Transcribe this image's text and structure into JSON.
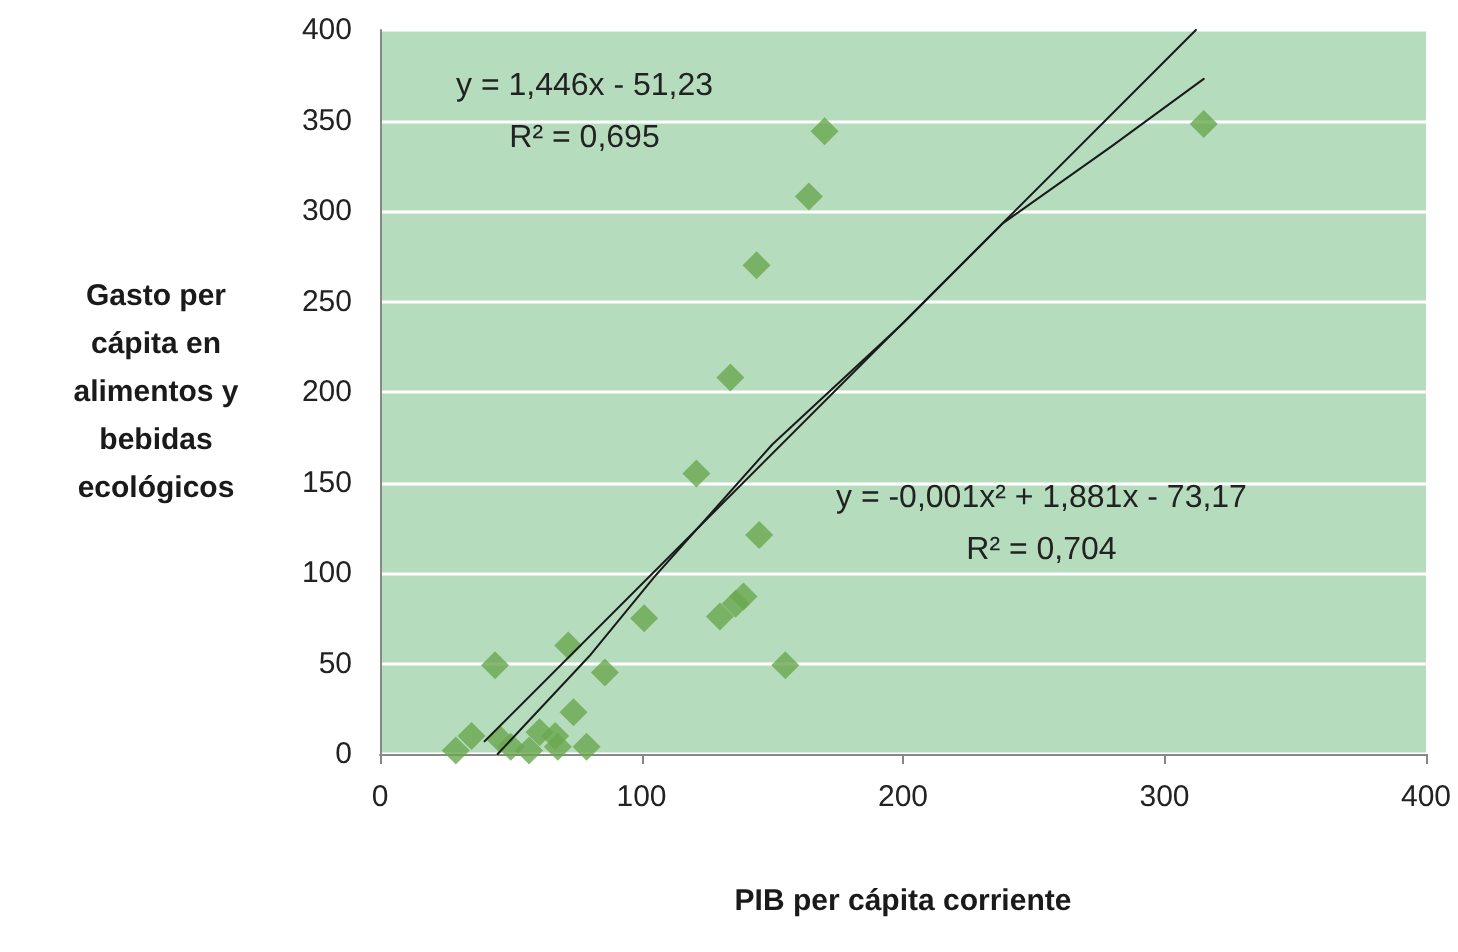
{
  "chart_data": {
    "type": "scatter",
    "xlabel": "PIB per cápita corriente",
    "ylabel": "Gasto per\ncápita en\nalimentos y\nbebidas\necológicos",
    "series": [
      {
        "color": "#6aa84f",
        "marker": "diamond",
        "x": [
          29,
          35,
          44,
          46,
          50,
          57,
          61,
          67,
          68,
          72,
          74,
          79,
          86,
          101,
          121,
          130,
          136,
          139,
          145,
          155,
          134,
          144,
          164,
          170,
          315
        ],
        "values": [
          2,
          10,
          49,
          8,
          4,
          2,
          12,
          10,
          4,
          60,
          23,
          4,
          45,
          75,
          155,
          76,
          83,
          87,
          121,
          49,
          208,
          270,
          308,
          344,
          348
        ]
      },
      {
        "type": "line",
        "color": "#1a1a1a",
        "marker": "none",
        "x": [
          40,
          312
        ],
        "values": [
          7,
          400
        ]
      },
      {
        "type": "line",
        "color": "#1a1a1a",
        "marker": "none",
        "x": [
          45,
          80,
          105,
          150,
          200,
          238,
          280,
          315
        ],
        "values": [
          0,
          54,
          98,
          171,
          238,
          293,
          336,
          373
        ]
      }
    ],
    "xlim": [
      0,
      400
    ],
    "xticks": [
      0,
      100,
      200,
      300,
      400
    ],
    "ylim": [
      0,
      400
    ],
    "yticks": [
      0,
      50,
      100,
      150,
      200,
      250,
      300,
      350,
      400
    ],
    "grid": "y",
    "annotations": [
      "y = 1,446x - 51,23\nR² = 0,695",
      "y = -0,001x² + 1,881x - 73,17\nR² = 0,704"
    ]
  }
}
